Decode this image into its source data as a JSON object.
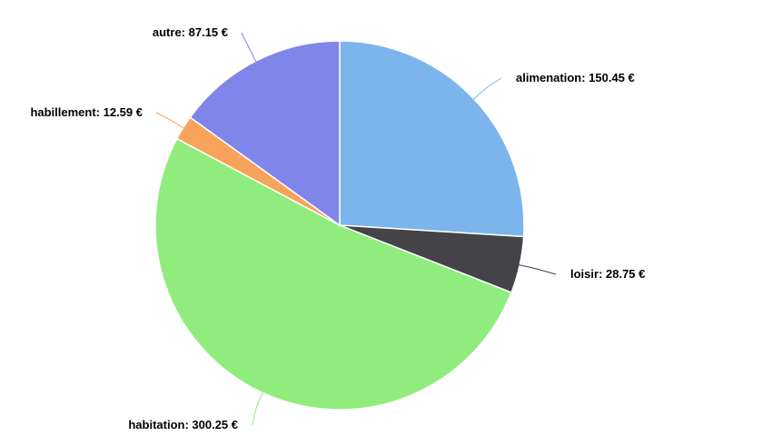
{
  "chart_data": {
    "type": "pie",
    "currency": "€",
    "slices": [
      {
        "name": "alimenation",
        "value": 150.45,
        "label": "alimenation: 150.45 €",
        "color": "#7cb5ec"
      },
      {
        "name": "loisir",
        "value": 28.75,
        "label": "loisir: 28.75 €",
        "color": "#434348"
      },
      {
        "name": "habitation",
        "value": 300.25,
        "label": "habitation: 300.25 €",
        "color": "#90ed7d"
      },
      {
        "name": "habillement",
        "value": 12.59,
        "label": "habillement: 12.59 €",
        "color": "#f7a35c"
      },
      {
        "name": "autre",
        "value": 87.15,
        "label": "autre: 87.15 €",
        "color": "#8085e9"
      }
    ]
  }
}
